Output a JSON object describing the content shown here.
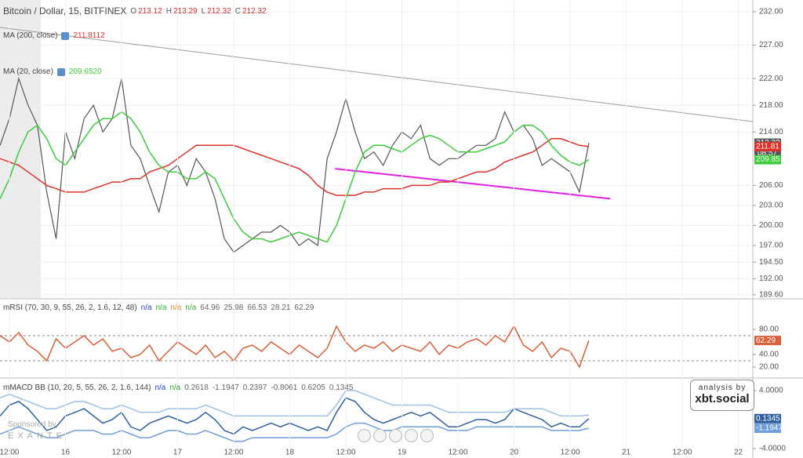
{
  "chart_data": [
    {
      "type": "line",
      "title": "Bitcoin / Dollar, 15, BITFINEX",
      "ohlc": [
        {
          "label": "O",
          "value": 213.12
        },
        {
          "label": "H",
          "value": 213.29
        },
        {
          "label": "L",
          "value": 212.32
        },
        {
          "label": "C",
          "value": 212.32
        }
      ],
      "x": [
        -2,
        0,
        2,
        4,
        6,
        8,
        10,
        12,
        14,
        16,
        18,
        20,
        22,
        24,
        26,
        28,
        30,
        32,
        34,
        36,
        38,
        40,
        42,
        44,
        46,
        48,
        50,
        52,
        54,
        56,
        58,
        60,
        62,
        64,
        66,
        68,
        70,
        72,
        74,
        76,
        78,
        80,
        82,
        84,
        86,
        88,
        90,
        92,
        94,
        96,
        98,
        100,
        102,
        104,
        106,
        108,
        110,
        112,
        114,
        116,
        118,
        120,
        122,
        124
      ],
      "xlim": [
        -2.01,
        159.1
      ],
      "ylim": [
        189.13,
        233.76
      ],
      "yticks": [
        {
          "value": 232,
          "label": "232.00"
        },
        {
          "value": 227,
          "label": "227.00"
        },
        {
          "value": 222,
          "label": "222.00"
        },
        {
          "value": 218,
          "label": "218.00"
        },
        {
          "value": 214,
          "label": "214.00"
        },
        {
          "value": 206,
          "label": "206.00"
        },
        {
          "value": 203,
          "label": "203.00"
        },
        {
          "value": 200,
          "label": "200.00"
        },
        {
          "value": 197,
          "label": "197.00"
        },
        {
          "value": 194.5,
          "label": "194.50"
        },
        {
          "value": 192,
          "label": "192.00"
        },
        {
          "value": 189.6,
          "label": "189.60"
        }
      ],
      "grid": true,
      "series": [
        {
          "color": "#555555",
          "values": [
            212,
            216,
            222,
            218,
            215,
            205,
            198,
            214,
            210,
            216,
            218,
            214,
            216,
            222,
            212,
            210,
            206,
            202,
            208,
            209,
            206,
            210,
            208,
            204,
            198,
            196,
            197,
            198,
            199,
            199,
            200,
            199,
            197,
            198,
            197,
            210,
            214,
            219,
            214,
            210,
            211,
            209,
            212,
            214,
            213,
            215,
            210,
            209,
            210,
            210,
            211,
            212,
            212,
            213,
            217,
            214,
            215,
            213,
            209,
            210,
            209,
            208,
            205,
            212.32
          ]
        },
        {
          "name": "MA (200, close)",
          "legend_value": 211.8112,
          "color": "#e0302a",
          "values": [
            210,
            209.5,
            209,
            208,
            207,
            206,
            205.5,
            205,
            205,
            205,
            205.5,
            206,
            206.5,
            206.5,
            207,
            207,
            208,
            208.5,
            209,
            210,
            211,
            212,
            212,
            212,
            212,
            212,
            211.5,
            211,
            210.5,
            210,
            209.5,
            209,
            208.5,
            207.5,
            206,
            205,
            204.5,
            204.5,
            204.5,
            205,
            205,
            205.5,
            205.5,
            205.5,
            206,
            206,
            206,
            206.5,
            206.5,
            207,
            207.5,
            208,
            208,
            208.5,
            209.5,
            210,
            210.5,
            211,
            212,
            213,
            213,
            212.5,
            212,
            211.81
          ]
        },
        {
          "name": "MA (20, close)",
          "legend_value": "209.6520",
          "color": "#3ccc3c",
          "values": [
            204,
            207,
            211,
            214,
            215,
            213,
            210,
            209,
            211,
            213,
            215,
            216,
            216,
            217,
            216,
            214,
            211,
            209,
            208,
            208,
            207,
            207,
            208,
            207,
            204,
            201,
            199,
            198,
            198,
            197.5,
            198,
            198.5,
            199,
            198.5,
            198,
            197.5,
            200,
            204,
            208,
            211,
            212,
            212,
            211.5,
            211,
            212,
            213,
            213.5,
            213,
            212,
            211,
            211,
            211,
            211.5,
            212,
            212.5,
            214,
            215,
            215,
            214,
            212,
            210.5,
            209.5,
            209,
            209.85
          ]
        }
      ],
      "trendlines": [
        {
          "color": "#999999",
          "x": [
            -2.01,
            159.1
          ],
          "y": [
            229.65,
            215.56
          ]
        },
        {
          "color": "#e020e0",
          "x": [
            69.7,
            128.6
          ],
          "y": [
            208.5,
            204
          ]
        }
      ],
      "countdown": "08:57"
    },
    {
      "type": "line",
      "title": "mRSI (70, 30, 9, 55, 26, 2, 1.6, 12, 48)",
      "legend_values": [
        "n/a",
        "n/a",
        "n/a",
        "n/a",
        64.96,
        25.98,
        66.53,
        28.21,
        62.29
      ],
      "x": [
        -2,
        0,
        2,
        4,
        6,
        8,
        10,
        12,
        14,
        16,
        18,
        20,
        22,
        24,
        26,
        28,
        30,
        32,
        34,
        36,
        38,
        40,
        42,
        44,
        46,
        48,
        50,
        52,
        54,
        56,
        58,
        60,
        62,
        64,
        66,
        68,
        70,
        72,
        74,
        76,
        78,
        80,
        82,
        84,
        86,
        88,
        90,
        92,
        94,
        96,
        98,
        100,
        102,
        104,
        106,
        108,
        110,
        112,
        114,
        116,
        118,
        120,
        122,
        124
      ],
      "xlim": [
        -2.01,
        159.1
      ],
      "ylim": [
        5,
        126.25
      ],
      "yticks": [
        {
          "value": 80,
          "label": "80.00"
        },
        {
          "value": 40,
          "label": "40.00"
        },
        {
          "value": 20,
          "label": "20.00"
        }
      ],
      "levels": [
        70,
        30
      ],
      "series": [
        {
          "color": "#d9603a",
          "values": [
            70,
            60,
            75,
            55,
            45,
            30,
            65,
            50,
            60,
            70,
            55,
            65,
            45,
            50,
            35,
            40,
            55,
            30,
            45,
            60,
            50,
            40,
            55,
            35,
            45,
            30,
            50,
            55,
            45,
            60,
            50,
            40,
            55,
            45,
            35,
            50,
            85,
            60,
            45,
            55,
            50,
            60,
            45,
            55,
            50,
            45,
            60,
            40,
            55,
            50,
            60,
            65,
            55,
            70,
            60,
            85,
            55,
            45,
            60,
            35,
            50,
            45,
            20,
            62.29
          ]
        }
      ]
    },
    {
      "type": "line",
      "title": "mMACD BB (10, 20, 5, 55, 26, 2, 1.6, 144)",
      "legend_values": [
        "n/a",
        "n/a",
        0.2618,
        -1.1947,
        0.2397,
        -0.8061,
        0.6205,
        0.1345
      ],
      "x": [
        -2,
        0,
        2,
        4,
        6,
        8,
        10,
        12,
        14,
        16,
        18,
        20,
        22,
        24,
        26,
        28,
        30,
        32,
        34,
        36,
        38,
        40,
        42,
        44,
        46,
        48,
        50,
        52,
        54,
        56,
        58,
        60,
        62,
        64,
        66,
        68,
        70,
        72,
        74,
        76,
        78,
        80,
        82,
        84,
        86,
        88,
        90,
        92,
        94,
        96,
        98,
        100,
        102,
        104,
        106,
        108,
        110,
        112,
        114,
        116,
        118,
        120,
        122,
        124
      ],
      "xlim": [
        -2.01,
        159.1
      ],
      "ylim": [
        -5.3,
        5.41
      ],
      "yticks": [
        {
          "value": 4,
          "label": "4.0000"
        },
        {
          "value": -4,
          "label": "-4.0000"
        }
      ],
      "xticks": [
        {
          "value": 0,
          "label": "12:00"
        },
        {
          "value": 12,
          "label": "16"
        },
        {
          "value": 24,
          "label": "12:00"
        },
        {
          "value": 36,
          "label": "17"
        },
        {
          "value": 48,
          "label": "12:00"
        },
        {
          "value": 60,
          "label": "18"
        },
        {
          "value": 72,
          "label": "12:00"
        },
        {
          "value": 84,
          "label": "19"
        },
        {
          "value": 96,
          "label": "12:00"
        },
        {
          "value": 108,
          "label": "20"
        },
        {
          "value": 120,
          "label": "12:00"
        },
        {
          "value": 132,
          "label": "21"
        },
        {
          "value": 144,
          "label": "12:00"
        },
        {
          "value": 156,
          "label": "22"
        }
      ],
      "series": [
        {
          "color": "#2f5f9e",
          "values": [
            0.5,
            2,
            2.5,
            1.5,
            0,
            -1.5,
            -1,
            0.5,
            1,
            1.5,
            0.5,
            -0.5,
            0,
            1,
            -1,
            -1.5,
            -0.5,
            0,
            0.5,
            0,
            -0.5,
            0,
            1,
            0,
            -1.5,
            -2,
            -1,
            -1.5,
            -1,
            -0.5,
            -1,
            -0.5,
            -1,
            -1.5,
            -1,
            -1.5,
            1,
            3,
            2.5,
            1,
            0,
            -0.5,
            0,
            0.5,
            1,
            0.5,
            1,
            0,
            -1,
            -1,
            -0.5,
            0,
            0,
            -0.5,
            0,
            1.5,
            1,
            0.5,
            0,
            -1,
            -0.5,
            -1,
            -1,
            0.1345
          ]
        },
        {
          "color": "#9cc0e6",
          "values": [
            3,
            3.5,
            3,
            2.5,
            2,
            1.5,
            1.5,
            2,
            2.5,
            2.5,
            2,
            1.5,
            1.5,
            2,
            1.5,
            1,
            1,
            1,
            1.5,
            1.5,
            1.5,
            1.5,
            2,
            1.5,
            1,
            0.5,
            0.5,
            0.5,
            0.5,
            0.5,
            0.5,
            0.5,
            0.5,
            0.5,
            0.5,
            0.5,
            2,
            4,
            4,
            3.5,
            3,
            2.5,
            2,
            2,
            2,
            2,
            2,
            1.5,
            1,
            1,
            1,
            1,
            1,
            1,
            1,
            1.5,
            1.5,
            1.5,
            1.5,
            1,
            0.5,
            0.5,
            0.5,
            0.6205
          ]
        },
        {
          "color": "#6f9fd8",
          "values": [
            -2,
            -1.5,
            -1,
            -1.5,
            -2,
            -2.5,
            -2.5,
            -2,
            -1.5,
            -1.5,
            -1.5,
            -2,
            -2,
            -1.5,
            -2,
            -2.5,
            -2.5,
            -2,
            -1.5,
            -1.5,
            -2,
            -2,
            -1.5,
            -2,
            -2.5,
            -3,
            -3,
            -2.5,
            -2.5,
            -2.5,
            -2.5,
            -2.5,
            -2.5,
            -2.5,
            -2.5,
            -2.5,
            -2,
            -1,
            -0.5,
            -0.5,
            -1,
            -1.5,
            -1.5,
            -1,
            -1,
            -1,
            -1,
            -1,
            -1.5,
            -1.5,
            -1.5,
            -1,
            -1,
            -1,
            -1,
            -1,
            -1,
            -1,
            -1,
            -1.5,
            -1.5,
            -1.5,
            -1.5,
            -1.1947
          ]
        }
      ]
    }
  ],
  "credits": {
    "analysis": "analysis by",
    "site": "xbt.social",
    "sponsor": "Sponsored by",
    "sponsor_name": "EXANTE"
  }
}
